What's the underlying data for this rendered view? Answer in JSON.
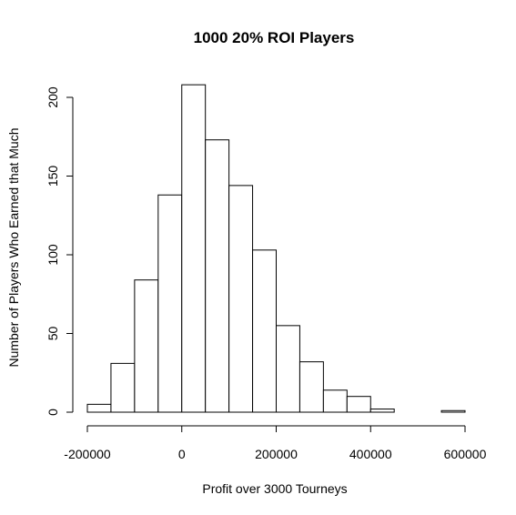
{
  "chart_data": {
    "type": "bar",
    "title": "1000 20% ROI Players",
    "xlabel": "Profit over 3000 Tourneys",
    "ylabel": "Number of Players Who Earned that Much",
    "bin_edges": [
      -200000,
      -150000,
      -100000,
      -50000,
      0,
      50000,
      100000,
      150000,
      200000,
      250000,
      300000,
      350000,
      400000,
      450000,
      500000,
      550000,
      600000
    ],
    "values": [
      5,
      31,
      84,
      138,
      208,
      173,
      144,
      103,
      55,
      32,
      14,
      10,
      2,
      0,
      0,
      1
    ],
    "xlim": [
      -200000,
      600000
    ],
    "ylim": [
      0,
      208
    ],
    "x_ticks": [
      -200000,
      0,
      200000,
      400000,
      600000
    ],
    "x_tick_labels": [
      "-200000",
      "0",
      "200000",
      "400000",
      "600000"
    ],
    "y_ticks": [
      0,
      50,
      100,
      150,
      200
    ],
    "y_tick_labels": [
      "0",
      "50",
      "100",
      "150",
      "200"
    ],
    "grid": false
  }
}
